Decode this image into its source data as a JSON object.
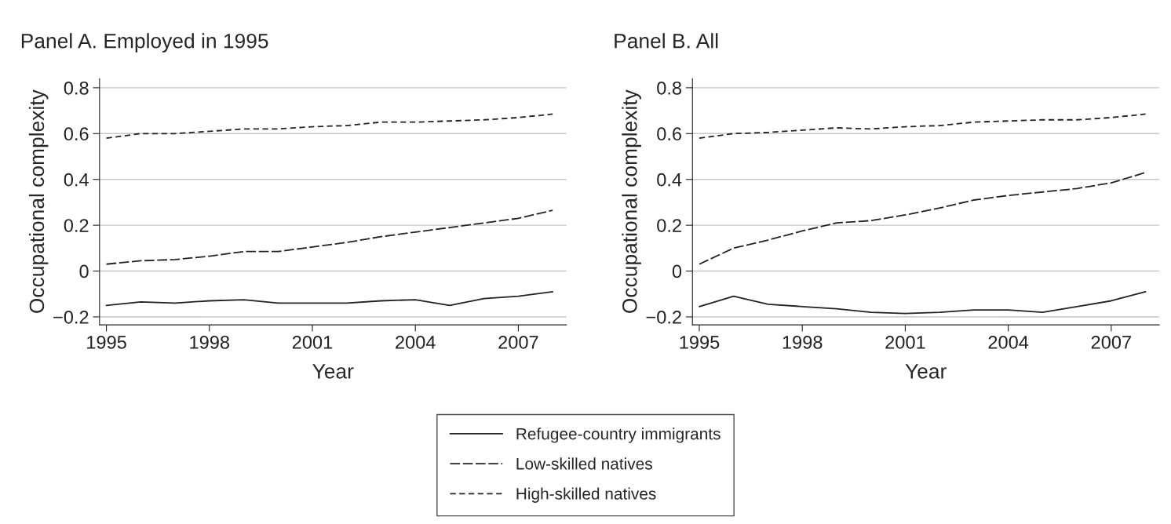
{
  "chart_data": [
    {
      "type": "line",
      "title": "Panel A. Employed in 1995",
      "xlabel": "Year",
      "ylabel": "Occupational complexity",
      "x": [
        1995,
        1996,
        1997,
        1998,
        1999,
        2000,
        2001,
        2002,
        2003,
        2004,
        2005,
        2006,
        2007,
        2008
      ],
      "series": [
        {
          "name": "Refugee-country immigrants",
          "color": "#222222",
          "line_style": "solid",
          "values": [
            -0.15,
            -0.135,
            -0.14,
            -0.13,
            -0.125,
            -0.14,
            -0.14,
            -0.14,
            -0.13,
            -0.125,
            -0.15,
            -0.12,
            -0.11,
            -0.09
          ]
        },
        {
          "name": "Low-skilled natives",
          "color": "#222222",
          "line_style": "dashed",
          "values": [
            0.03,
            0.045,
            0.05,
            0.065,
            0.085,
            0.085,
            0.105,
            0.125,
            0.15,
            0.17,
            0.19,
            0.21,
            0.23,
            0.265
          ]
        },
        {
          "name": "High-skilled natives",
          "color": "#222222",
          "line_style": "dotted",
          "values": [
            0.58,
            0.6,
            0.6,
            0.61,
            0.62,
            0.62,
            0.63,
            0.635,
            0.65,
            0.65,
            0.655,
            0.66,
            0.67,
            0.685
          ]
        }
      ],
      "xlim": [
        1994.8,
        2008.4
      ],
      "xticks": [
        1995,
        1998,
        2001,
        2004,
        2007
      ],
      "ylim": [
        -0.235,
        0.84
      ],
      "yticks": [
        {
          "value": -0.2,
          "label": "−0.2"
        },
        0,
        0.2,
        0.4,
        0.6,
        0.8
      ],
      "grid": "y",
      "legend": "bottom"
    },
    {
      "type": "line",
      "title": "Panel B. All",
      "xlabel": "Year",
      "ylabel": "Occupational complexity",
      "x": [
        1995,
        1996,
        1997,
        1998,
        1999,
        2000,
        2001,
        2002,
        2003,
        2004,
        2005,
        2006,
        2007,
        2008
      ],
      "series": [
        {
          "color": "#222222",
          "line_style": "solid",
          "values": [
            -0.155,
            -0.11,
            -0.145,
            -0.155,
            -0.165,
            -0.18,
            -0.185,
            -0.18,
            -0.17,
            -0.17,
            -0.18,
            -0.155,
            -0.13,
            -0.09
          ]
        },
        {
          "color": "#222222",
          "line_style": "dashed",
          "values": [
            0.03,
            0.1,
            0.135,
            0.175,
            0.21,
            0.22,
            0.245,
            0.275,
            0.31,
            0.33,
            0.345,
            0.36,
            0.385,
            0.43
          ]
        },
        {
          "color": "#222222",
          "line_style": "dotted",
          "values": [
            0.58,
            0.6,
            0.605,
            0.615,
            0.625,
            0.62,
            0.63,
            0.635,
            0.65,
            0.655,
            0.66,
            0.66,
            0.67,
            0.685
          ]
        }
      ],
      "xlim": [
        1994.8,
        2008.4
      ],
      "xticks": [
        1995,
        1998,
        2001,
        2004,
        2007
      ],
      "ylim": [
        -0.235,
        0.84
      ],
      "yticks": [
        {
          "value": -0.2,
          "label": "−0.2"
        },
        0,
        0.2,
        0.4,
        0.6,
        0.8
      ],
      "grid": "y"
    }
  ]
}
